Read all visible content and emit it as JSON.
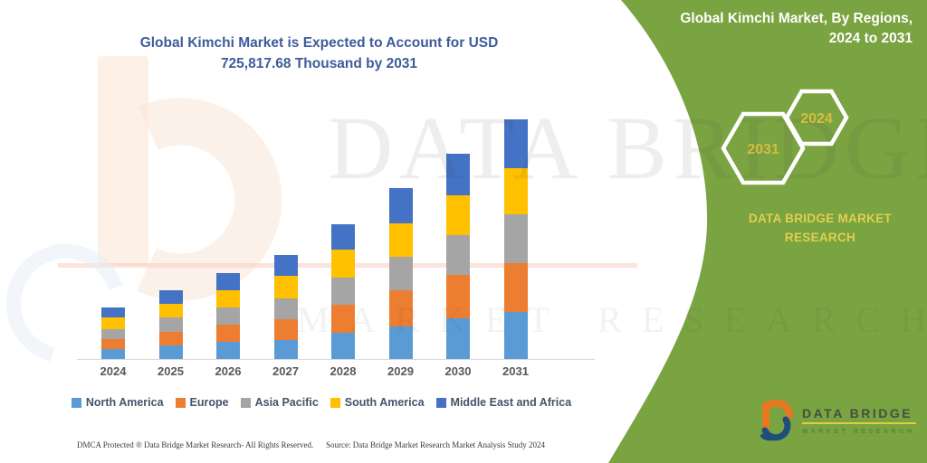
{
  "chart_title": {
    "line1": "Global Kimchi Market is Expected to Account for USD",
    "line2": "725,817.68 Thousand  by 2031"
  },
  "chart_data": {
    "type": "bar",
    "stacked": true,
    "title": "Global Kimchi Market is Expected to Account for USD 725,817.68 Thousand by 2031",
    "value_unit": "USD Thousand",
    "categories": [
      "2024",
      "2025",
      "2026",
      "2027",
      "2028",
      "2029",
      "2030",
      "2031"
    ],
    "series": [
      {
        "name": "North America",
        "color": "#5B9BD5",
        "values": [
          31000,
          40000,
          52900,
          57500,
          79400,
          97800,
          123300,
          142400
        ]
      },
      {
        "name": "Europe",
        "color": "#ED7D31",
        "values": [
          29300,
          42200,
          52000,
          64100,
          84100,
          109600,
          130600,
          147900
        ]
      },
      {
        "name": "Asia Pacific",
        "color": "#A5A5A5",
        "values": [
          31000,
          42700,
          50100,
          61100,
          82200,
          102200,
          122400,
          147900
        ]
      },
      {
        "name": "South America",
        "color": "#FFC000",
        "values": [
          34800,
          41100,
          52000,
          68500,
          84900,
          100500,
          118600,
          139700
        ]
      },
      {
        "name": "Middle East and Africa",
        "color": "#4472C4",
        "values": [
          31000,
          43000,
          52900,
          64900,
          78600,
          106800,
          127900,
          147917.68
        ]
      }
    ],
    "totals_estimated": [
      157100,
      209000,
      259900,
      316100,
      409200,
      516900,
      622800,
      725817.68
    ],
    "ylim": [
      0,
      725817.68
    ],
    "legend_position": "bottom",
    "grid": false,
    "note": "segment values estimated from bar heights; 2031 total labeled in title"
  },
  "panel": {
    "title_line1": "Global Kimchi Market, By Regions,",
    "title_line2": "2024 to 2031",
    "hexagon_large": "2031",
    "hexagon_small": "2024",
    "brand_line1": "DATA BRIDGE MARKET",
    "brand_line2": "RESEARCH",
    "background_color": "#7AA341"
  },
  "logo": {
    "name": "DATA BRIDGE",
    "subtitle": "MARKET RESEARCH"
  },
  "watermark": {
    "line1": "DATA BRIDGE",
    "line2": "MARKET RESEARCH"
  },
  "footer": {
    "left": "DMCA Protected ® Data Bridge Market Research-  All Rights Reserved.",
    "right": "Source: Data Bridge Market Research  Market Analysis Study 2024"
  },
  "colors": {
    "title_text": "#3E5C9A",
    "axis_label": "#595959",
    "legend_text": "#44546A",
    "panel_green": "#7AA341",
    "hexagon_text": "#D7BC41",
    "brand_yellow": "#E2CF4E"
  }
}
